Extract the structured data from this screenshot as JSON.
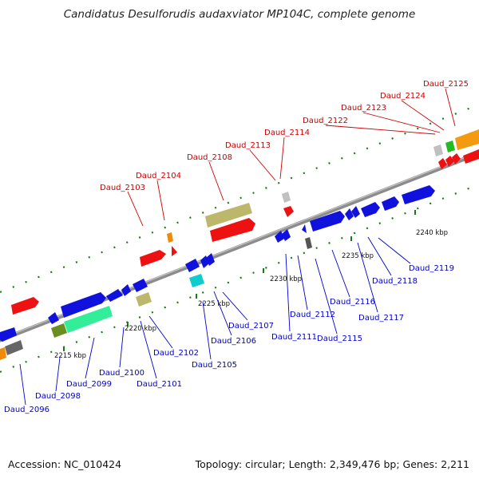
{
  "title": "Candidatus Desulforudis audaxviator MP104C, complete genome",
  "footer": {
    "accession": "Accession: NC_010424",
    "topology": "Topology: circular; Length: 2,349,476 bp; Genes: 2,211"
  },
  "colors": {
    "upper_label": "#cc0000",
    "lower_label": "#0000cc",
    "genome_line": "#8c8c8c",
    "guide_dots": "#1a7a1a"
  },
  "tick_labels": [
    "2215 kbp",
    "2220 kbp",
    "2225 kbp",
    "2230 kbp",
    "2235 kbp",
    "2240 kbp"
  ],
  "genes_upper": [
    "Daud_2103",
    "Daud_2104",
    "Daud_2108",
    "Daud_2113",
    "Daud_2114",
    "Daud_2122",
    "Daud_2123",
    "Daud_2124",
    "Daud_2125"
  ],
  "genes_lower": [
    "Daud_2096",
    "Daud_2098",
    "Daud_2099",
    "Daud_2100",
    "Daud_2101",
    "Daud_2102",
    "Daud_2105",
    "Daud_2106",
    "Daud_2107",
    "Daud_2111",
    "Daud_2112",
    "Daud_2115",
    "Daud_2116",
    "Daud_2117",
    "Daud_2118",
    "Daud_2119"
  ]
}
